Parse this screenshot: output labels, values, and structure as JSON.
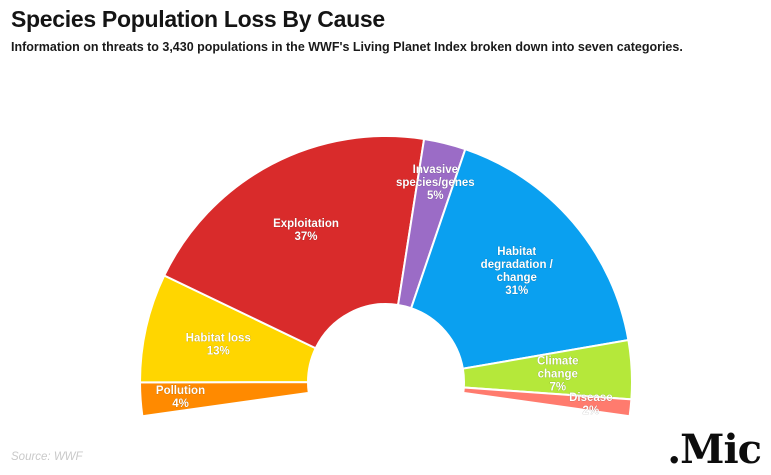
{
  "title": "Species Population Loss By Cause",
  "subtitle": "Information on threats to 3,430 populations in the WWF's Living Planet Index broken down into seven categories.",
  "source": "Source: WWF",
  "logo_text": ".Mic",
  "chart_data": {
    "type": "pie",
    "variant": "semi-donut",
    "title": "Species Population Loss By Cause",
    "slices": [
      {
        "name": "Pollution",
        "value": 4,
        "label_lines": [
          "Pollution",
          "4%"
        ],
        "color": "#FF8A00"
      },
      {
        "name": "Habitat loss",
        "value": 13,
        "label_lines": [
          "Habitat loss",
          "13%"
        ],
        "color": "#FFD600"
      },
      {
        "name": "Exploitation",
        "value": 37,
        "label_lines": [
          "Exploitation",
          "37%"
        ],
        "color": "#D92B2B"
      },
      {
        "name": "Invasive species/genes",
        "value": 5,
        "label_lines": [
          "Invasive",
          "species/genes",
          "5%"
        ],
        "color": "#9B6CC6"
      },
      {
        "name": "Habitat degradation / change",
        "value": 31,
        "label_lines": [
          "Habitat",
          "degradation /",
          "change",
          "31%"
        ],
        "color": "#0AA0F0"
      },
      {
        "name": "Climate change",
        "value": 7,
        "label_lines": [
          "Climate",
          "change",
          "7%"
        ],
        "color": "#B5E83A"
      },
      {
        "name": "Disease",
        "value": 2,
        "label_lines": [
          "Disease",
          "2%"
        ],
        "color": "#FF7B6E"
      }
    ]
  }
}
